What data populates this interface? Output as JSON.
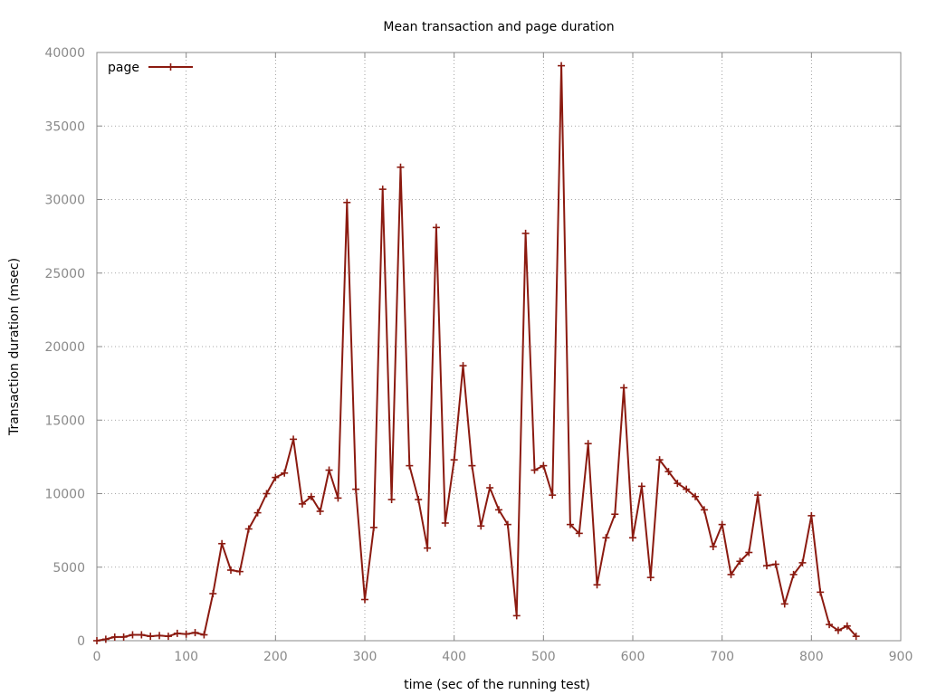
{
  "chart_data": {
    "type": "line",
    "title": "Mean transaction and page duration",
    "xlabel": "time (sec of the running test)",
    "ylabel": "Transaction duration (msec)",
    "xlim": [
      0,
      900
    ],
    "ylim": [
      0,
      40000
    ],
    "xticks": [
      0,
      100,
      200,
      300,
      400,
      500,
      600,
      700,
      800,
      900
    ],
    "yticks": [
      0,
      5000,
      10000,
      15000,
      20000,
      25000,
      30000,
      35000,
      40000
    ],
    "grid": true,
    "legend_position": "top-left",
    "series": [
      {
        "name": "page",
        "color": "#8b1a10",
        "marker": "plus",
        "x": [
          0,
          10,
          20,
          30,
          40,
          50,
          60,
          70,
          80,
          90,
          100,
          110,
          120,
          130,
          140,
          150,
          160,
          170,
          180,
          190,
          200,
          210,
          220,
          230,
          240,
          250,
          260,
          270,
          280,
          290,
          300,
          310,
          320,
          330,
          340,
          350,
          360,
          370,
          380,
          390,
          400,
          410,
          420,
          430,
          440,
          450,
          460,
          470,
          480,
          490,
          500,
          510,
          520,
          530,
          540,
          550,
          560,
          570,
          580,
          590,
          600,
          610,
          620,
          630,
          640,
          650,
          660,
          670,
          680,
          690,
          700,
          710,
          720,
          730,
          740,
          750,
          760,
          770,
          780,
          790,
          800,
          810,
          820,
          830,
          840,
          850
        ],
        "y": [
          0,
          100,
          250,
          250,
          400,
          400,
          300,
          350,
          300,
          500,
          450,
          550,
          400,
          3200,
          6600,
          4800,
          4700,
          7600,
          8700,
          10000,
          11100,
          11400,
          13700,
          9300,
          9800,
          8800,
          11600,
          9700,
          29800,
          10300,
          2800,
          7700,
          30700,
          9600,
          32200,
          11900,
          9600,
          6300,
          28100,
          8000,
          12300,
          18700,
          11900,
          7800,
          10400,
          8900,
          7900,
          1700,
          27700,
          11600,
          11900,
          9900,
          39100,
          7900,
          7300,
          13400,
          3800,
          7000,
          8600,
          17200,
          7000,
          10500,
          4300,
          12300,
          11500,
          10700,
          10300,
          9800,
          8900,
          6400,
          7900,
          4500,
          5400,
          6000,
          9900,
          5100,
          5200,
          2500,
          4500,
          5300,
          8500,
          3300,
          1100,
          700,
          1000,
          300
        ]
      }
    ]
  }
}
